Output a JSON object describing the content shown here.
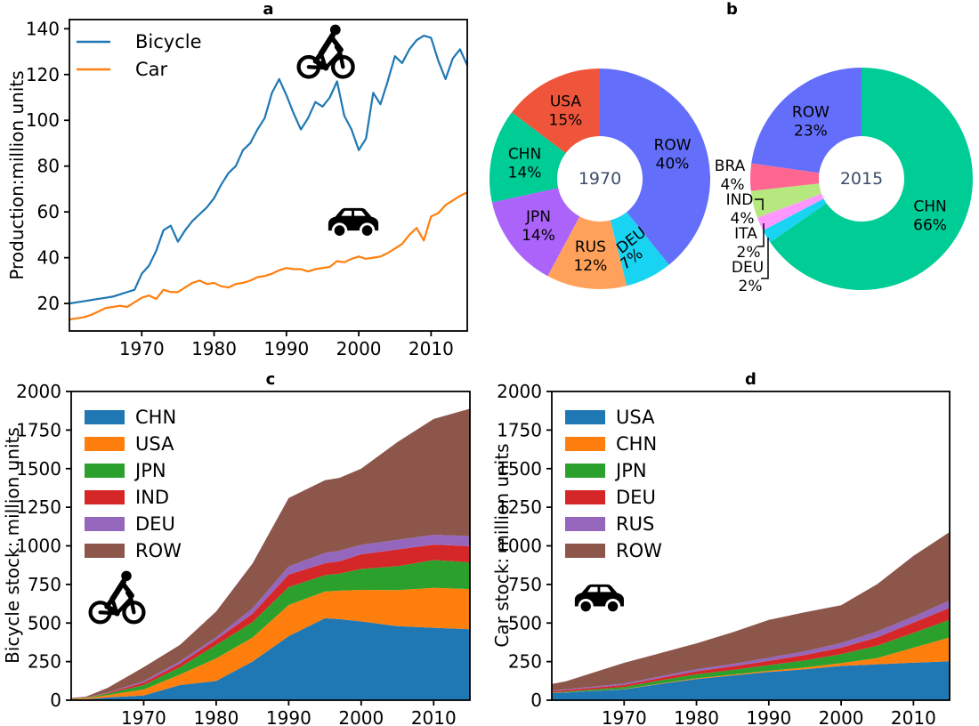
{
  "figure": {
    "background": "#ffffff"
  },
  "panels": {
    "a": {
      "title": "a",
      "ylabel": "Production:million units",
      "icons": [
        "bicycle-icon",
        "car-icon"
      ]
    },
    "b": {
      "title": "b",
      "icons": []
    },
    "c": {
      "title": "c",
      "ylabel": "Bicycle stock: million units",
      "icons": [
        "bicycle-icon"
      ]
    },
    "d": {
      "title": "d",
      "ylabel": "Car stock: million units",
      "icons": [
        "car-icon"
      ]
    }
  },
  "colors": {
    "line_bicycle": "#1f77b4",
    "line_car": "#ff7f0e",
    "tab_blue": "#1f77b4",
    "tab_orange": "#ff7f0e",
    "tab_green": "#2ca02c",
    "tab_red": "#d62728",
    "tab_purple": "#9467bd",
    "tab_brown": "#8c564b",
    "pie_indigo": "#636EFA",
    "pie_red": "#EF553B",
    "pie_green": "#00CC96",
    "pie_purple": "#AB63FA",
    "pie_orange": "#FFA15A",
    "pie_cyan": "#19D3F3",
    "pie_pink": "#FF6692",
    "pie_lightgreen": "#B6E880",
    "pie_magenta": "#FF97FF",
    "pie_center_text": "#3d4d6b",
    "axis": "#000000"
  },
  "chart_data": [
    {
      "id": "a",
      "type": "line",
      "title": "a",
      "ylabel": "Production:million units",
      "xlim": [
        1960,
        2015
      ],
      "ylim": [
        8,
        144
      ],
      "xticks": [
        1970,
        1980,
        1990,
        2000,
        2010
      ],
      "yticks": [
        20,
        40,
        60,
        80,
        100,
        120,
        140
      ],
      "legend_position": "upper-left",
      "x_start": 1960,
      "series": [
        {
          "name": "Bicycle",
          "color": "#1f77b4",
          "values": [
            20,
            20.5,
            21,
            21.5,
            22,
            22.5,
            23,
            24,
            25,
            26,
            33,
            36.5,
            43,
            52,
            54,
            47,
            52,
            56,
            59,
            62,
            66,
            72,
            77,
            80,
            87,
            90,
            96,
            101,
            112,
            118,
            111,
            103,
            96,
            101,
            108,
            106,
            110,
            117,
            102,
            96,
            87,
            92,
            112,
            107,
            117,
            128,
            125,
            131,
            135,
            137,
            136,
            126,
            118,
            127,
            131,
            124
          ]
        },
        {
          "name": "Car",
          "color": "#ff7f0e",
          "values": [
            13,
            13.5,
            14,
            15,
            16.5,
            18,
            18.5,
            19,
            18.5,
            20.5,
            22.5,
            23.5,
            22,
            26,
            25,
            25,
            27,
            29,
            30,
            28.5,
            29,
            27.5,
            27,
            28.5,
            29,
            30,
            31.5,
            32,
            33,
            34.5,
            35.5,
            35,
            35,
            34,
            35,
            35.5,
            36,
            38.5,
            38,
            39.5,
            40.5,
            39.5,
            40,
            40.5,
            42,
            44,
            46,
            50,
            53,
            47.5,
            58,
            59.5,
            63,
            65,
            67,
            68.5
          ]
        }
      ]
    },
    {
      "id": "b",
      "type": "pie",
      "title": "b",
      "pies": [
        {
          "center_label": "1970",
          "slices": [
            {
              "label": "ROW",
              "pct": 40,
              "color": "#636EFA",
              "inside": true
            },
            {
              "label": "DEU",
              "pct": 7,
              "color": "#19D3F3",
              "inside": true,
              "tilt": -38
            },
            {
              "label": "RUS",
              "pct": 12,
              "color": "#FFA15A",
              "inside": true
            },
            {
              "label": "JPN",
              "pct": 14,
              "color": "#AB63FA",
              "inside": true
            },
            {
              "label": "CHN",
              "pct": 14,
              "color": "#00CC96",
              "inside": true
            },
            {
              "label": "USA",
              "pct": 15,
              "color": "#EF553B",
              "inside": true
            }
          ]
        },
        {
          "center_label": "2015",
          "slices": [
            {
              "label": "CHN",
              "pct": 66,
              "color": "#00CC96",
              "inside": true
            },
            {
              "label": "DEU",
              "pct": 2,
              "color": "#19D3F3",
              "inside": false
            },
            {
              "label": "ITA",
              "pct": 2,
              "color": "#FF97FF",
              "inside": false
            },
            {
              "label": "IND",
              "pct": 4,
              "color": "#B6E880",
              "inside": false
            },
            {
              "label": "BRA",
              "pct": 4,
              "color": "#FF6692",
              "inside": false
            },
            {
              "label": "ROW",
              "pct": 23,
              "color": "#636EFA",
              "inside": true
            }
          ]
        }
      ]
    },
    {
      "id": "c",
      "type": "area",
      "title": "c",
      "ylabel": "Bicycle stock: million units",
      "xlim": [
        1960,
        2015
      ],
      "ylim": [
        0,
        2000
      ],
      "xticks": [
        1970,
        1980,
        1990,
        2000,
        2010
      ],
      "yticks": [
        0,
        250,
        500,
        750,
        1000,
        1250,
        1500,
        1750,
        2000
      ],
      "x": [
        1960,
        1962,
        1965,
        1970,
        1975,
        1980,
        1985,
        1990,
        1995,
        1997,
        2000,
        2005,
        2010,
        2015
      ],
      "series": [
        {
          "name": "CHN",
          "color": "#1f77b4",
          "values": [
            4,
            6,
            18,
            31,
            98,
            125,
            250,
            415,
            531,
            525,
            510,
            480,
            469,
            460
          ]
        },
        {
          "name": "USA",
          "color": "#ff7f0e",
          "values": [
            4,
            6,
            15,
            38,
            68,
            146,
            155,
            202,
            173,
            185,
            205,
            233,
            259,
            260
          ]
        },
        {
          "name": "JPN",
          "color": "#2ca02c",
          "values": [
            2,
            3,
            10,
            29,
            48,
            87,
            100,
            116,
            106,
            110,
            135,
            155,
            180,
            173
          ]
        },
        {
          "name": "IND",
          "color": "#d62728",
          "values": [
            1,
            1,
            4,
            16,
            23,
            35,
            55,
            81,
            77,
            80,
            95,
            108,
            100,
            105
          ]
        },
        {
          "name": "DEU",
          "color": "#9467bd",
          "values": [
            1,
            1,
            3,
            9,
            15,
            15,
            35,
            53,
            67,
            68,
            62,
            63,
            64,
            65
          ]
        },
        {
          "name": "ROW",
          "color": "#8c564b",
          "values": [
            3,
            5,
            29,
            91,
            106,
            167,
            290,
            443,
            471,
            472,
            493,
            633,
            750,
            825
          ]
        }
      ]
    },
    {
      "id": "d",
      "type": "area",
      "title": "d",
      "ylabel": "Car stock: million units",
      "xlim": [
        1960,
        2015
      ],
      "ylim": [
        0,
        2000
      ],
      "xticks": [
        1970,
        1980,
        1990,
        2000,
        2010
      ],
      "yticks": [
        0,
        250,
        500,
        750,
        1000,
        1250,
        1500,
        1750,
        2000
      ],
      "x": [
        1960,
        1962,
        1965,
        1970,
        1975,
        1980,
        1985,
        1990,
        1995,
        2000,
        2005,
        2010,
        2015
      ],
      "series": [
        {
          "name": "USA",
          "color": "#1f77b4",
          "values": [
            46,
            50,
            58,
            70,
            105,
            137,
            160,
            183,
            200,
            222,
            233,
            243,
            252
          ]
        },
        {
          "name": "CHN",
          "color": "#ff7f0e",
          "values": [
            1,
            1,
            1,
            2,
            3,
            5,
            6,
            8,
            12,
            18,
            40,
            97,
            154
          ]
        },
        {
          "name": "JPN",
          "color": "#2ca02c",
          "values": [
            3,
            5,
            8,
            14,
            20,
            26,
            30,
            36,
            46,
            58,
            80,
            96,
            115
          ]
        },
        {
          "name": "DEU",
          "color": "#d62728",
          "values": [
            8,
            10,
            11,
            13,
            16,
            19,
            23,
            28,
            35,
            42,
            55,
            67,
            77
          ]
        },
        {
          "name": "RUS",
          "color": "#9467bd",
          "values": [
            4,
            5,
            6,
            9,
            11,
            13,
            16,
            20,
            24,
            30,
            38,
            39,
            48
          ]
        },
        {
          "name": "ROW",
          "color": "#8c564b",
          "values": [
            43,
            52,
            84,
            134,
            150,
            168,
            205,
            245,
            253,
            245,
            306,
            393,
            443
          ]
        }
      ]
    }
  ]
}
